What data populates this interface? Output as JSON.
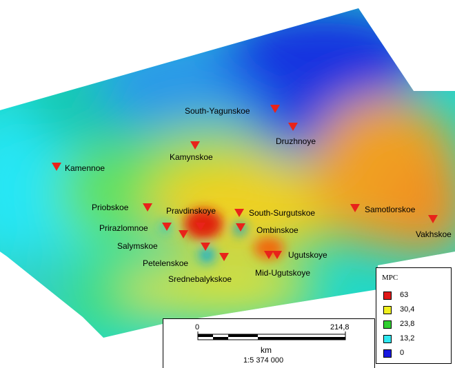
{
  "legend": {
    "title": "MPC",
    "items": [
      {
        "label": "63",
        "color": "#e01818"
      },
      {
        "label": "30,4",
        "color": "#f0f020"
      },
      {
        "label": "23,8",
        "color": "#30d030"
      },
      {
        "label": "13,2",
        "color": "#30e8f0"
      },
      {
        "label": "0",
        "color": "#1818e0"
      }
    ]
  },
  "scale": {
    "start": "0",
    "end": "214,8",
    "unit": "km",
    "ratio": "1:5 374 000"
  },
  "fields": [
    {
      "name": "South-Yagunskoe"
    },
    {
      "name": "Druzhnoye"
    },
    {
      "name": "Kamynskoe"
    },
    {
      "name": "Kamennoe"
    },
    {
      "name": "Priobskoe"
    },
    {
      "name": "Pravdinskoye"
    },
    {
      "name": "South-Surgutskoe"
    },
    {
      "name": "Samotlorskoe"
    },
    {
      "name": "Vakhskoe"
    },
    {
      "name": "Prirazlomnoe"
    },
    {
      "name": "Ombinskoe"
    },
    {
      "name": "Salymskoe"
    },
    {
      "name": "Petelenskoe"
    },
    {
      "name": "Ugutskoye"
    },
    {
      "name": "Srednebalykskoe"
    },
    {
      "name": "Mid-Ugutskoye"
    }
  ],
  "colors": {
    "marker": "#e8231a"
  }
}
